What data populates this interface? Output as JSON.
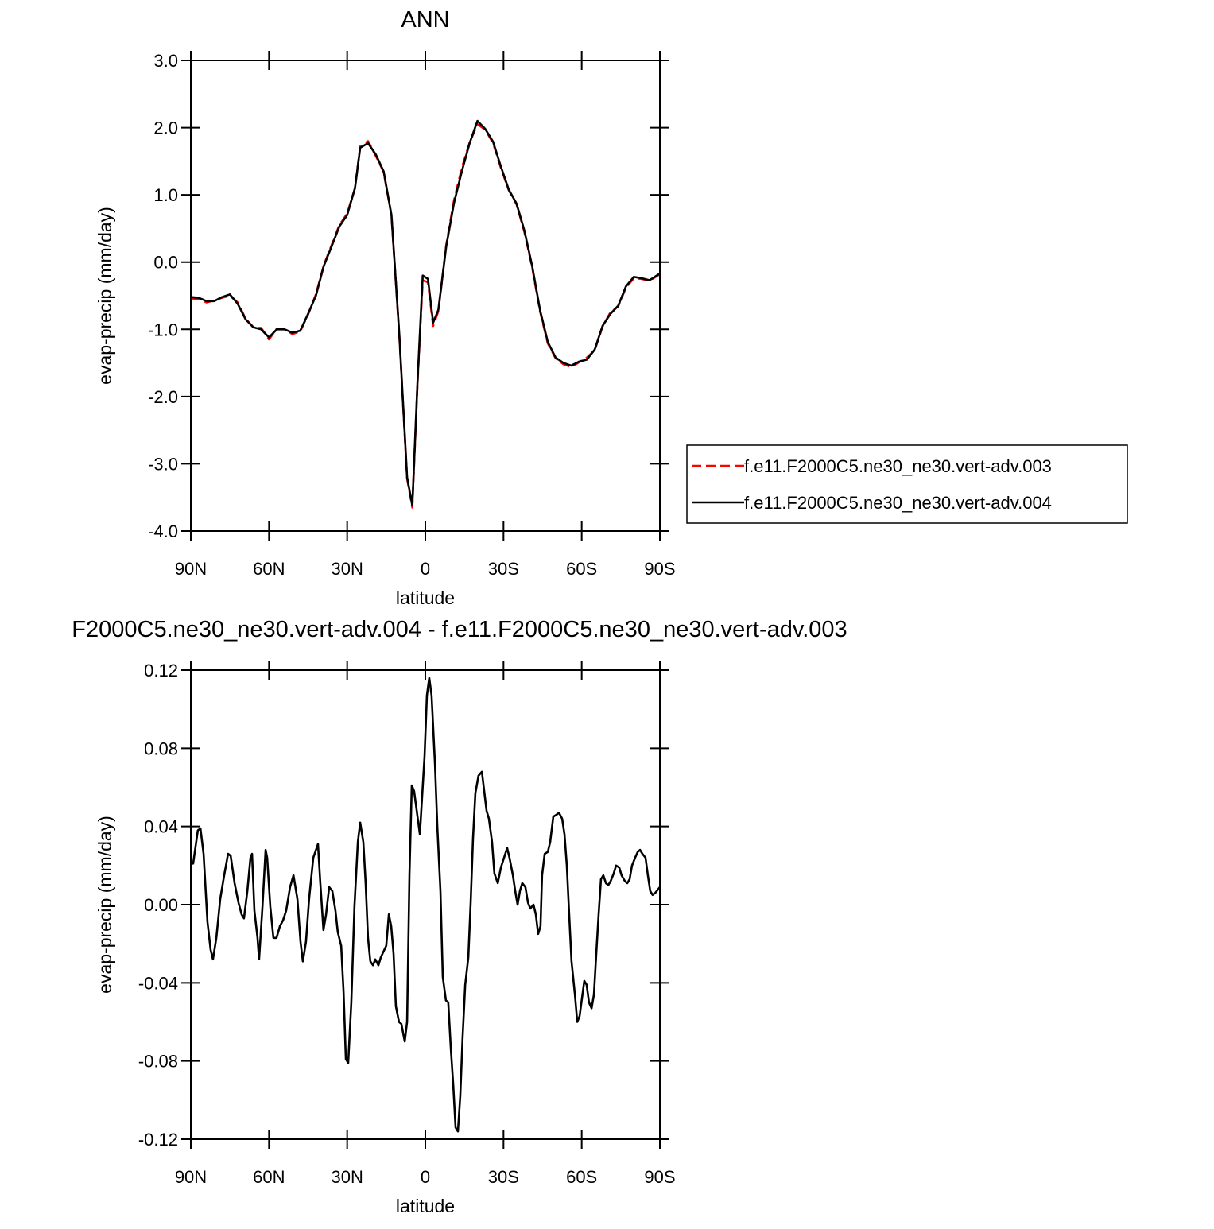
{
  "chart_data": [
    {
      "type": "line",
      "title": "ANN",
      "x_label": "latitude",
      "y_label": "evap-precip (mm/day)",
      "legend": "right",
      "x": [
        90,
        87,
        84,
        81,
        78,
        75,
        72,
        69,
        66,
        63,
        60,
        57,
        54,
        51,
        48,
        45,
        42,
        39,
        36,
        33,
        30,
        27,
        25,
        22,
        19,
        16,
        13,
        10,
        7,
        5,
        3,
        1,
        -1,
        -3,
        -5,
        -8,
        -11,
        -14,
        -17,
        -20,
        -23,
        -26,
        -29,
        -32,
        -35,
        -38,
        -41,
        -44,
        -47,
        -50,
        -53,
        -56,
        -59,
        -62,
        -65,
        -68,
        -71,
        -74,
        -77,
        -80,
        -83,
        -86,
        -90
      ],
      "series": [
        {
          "name": "f.e11.F2000C5.ne30_ne30.vert-adv.003",
          "color": "#ff0000",
          "dashed": true,
          "values": [
            -0.54,
            -0.55,
            -0.6,
            -0.57,
            -0.53,
            -0.5,
            -0.6,
            -0.84,
            -0.97,
            -0.98,
            -1.15,
            -0.99,
            -1.0,
            -1.07,
            -1.03,
            -0.78,
            -0.48,
            -0.05,
            0.25,
            0.55,
            0.72,
            1.1,
            1.72,
            1.8,
            1.58,
            1.34,
            0.69,
            -1.08,
            -3.22,
            -3.65,
            -1.8,
            -0.27,
            -0.3,
            -0.95,
            -0.73,
            0.25,
            0.92,
            1.4,
            1.78,
            2.05,
            1.97,
            1.77,
            1.4,
            1.07,
            0.86,
            0.45,
            -0.08,
            -0.73,
            -1.21,
            -1.43,
            -1.52,
            -1.56,
            -1.49,
            -1.42,
            -1.31,
            -0.96,
            -0.75,
            -0.66,
            -0.38,
            -0.24,
            -0.25,
            -0.28,
            -0.18
          ]
        },
        {
          "name": "f.e11.F2000C5.ne30_ne30.vert-adv.004",
          "color": "#000000",
          "dashed": false,
          "values": [
            -0.52,
            -0.53,
            -0.58,
            -0.58,
            -0.52,
            -0.48,
            -0.62,
            -0.85,
            -0.97,
            -1.0,
            -1.12,
            -1.0,
            -1.0,
            -1.05,
            -1.02,
            -0.77,
            -0.5,
            -0.06,
            0.23,
            0.53,
            0.7,
            1.1,
            1.7,
            1.77,
            1.6,
            1.35,
            0.7,
            -1.07,
            -3.2,
            -3.62,
            -1.78,
            -0.2,
            -0.25,
            -0.9,
            -0.71,
            0.23,
            0.88,
            1.35,
            1.77,
            2.1,
            1.98,
            1.79,
            1.42,
            1.08,
            0.87,
            0.47,
            -0.06,
            -0.71,
            -1.19,
            -1.42,
            -1.5,
            -1.54,
            -1.48,
            -1.45,
            -1.3,
            -0.95,
            -0.77,
            -0.65,
            -0.36,
            -0.22,
            -0.24,
            -0.27,
            -0.17
          ]
        }
      ],
      "xlim": [
        90,
        -90
      ],
      "xticks": [
        {
          "value": 90,
          "label": "90N"
        },
        {
          "value": 60,
          "label": "60N"
        },
        {
          "value": 30,
          "label": "30N"
        },
        0,
        {
          "value": -30,
          "label": "30S"
        },
        {
          "value": -60,
          "label": "60S"
        },
        {
          "value": -90,
          "label": "90S"
        }
      ],
      "ylim": [
        -4,
        3
      ],
      "yticks": [
        {
          "value": 3,
          "label": "3.0"
        },
        {
          "value": 2,
          "label": "2.0"
        },
        {
          "value": 1,
          "label": "1.0"
        },
        {
          "value": 0,
          "label": "0.0"
        },
        {
          "value": -1,
          "label": "-1.0"
        },
        {
          "value": -2,
          "label": "-2.0"
        },
        {
          "value": -3,
          "label": "-3.0"
        },
        {
          "value": -4,
          "label": "-4.0"
        }
      ]
    },
    {
      "type": "line",
      "title": "F2000C5.ne30_ne30.vert-adv.004 - f.e11.F2000C5.ne30_ne30.vert-adv.003",
      "x_label": "latitude",
      "y_label": "evap-precip (mm/day)",
      "x": [
        90,
        89.1,
        87.3,
        86.3,
        85.1,
        83.6,
        82.4,
        81.5,
        80.2,
        78.7,
        77.2,
        75.7,
        74.7,
        73.2,
        71.7,
        70.5,
        69.6,
        68.3,
        67.1,
        66.5,
        65.6,
        64.4,
        63.8,
        62.5,
        61.3,
        60.7,
        59.5,
        58.3,
        57.1,
        55.8,
        54.6,
        53.4,
        51.9,
        50.6,
        49.1,
        47.9,
        47.0,
        45.8,
        44.6,
        43.0,
        41.2,
        40.3,
        39.1,
        38.1,
        36.9,
        35.7,
        34.5,
        33.6,
        32.3,
        31.4,
        30.5,
        29.6,
        28.4,
        27.2,
        25.9,
        25.0,
        23.8,
        22.9,
        22.0,
        21.1,
        20.1,
        19.2,
        18.0,
        17.1,
        15.0,
        14.0,
        13.1,
        12.2,
        11.3,
        10.1,
        9.2,
        7.9,
        7.0,
        6.1,
        5.2,
        4.3,
        3.1,
        2.1,
        1.2,
        0.3,
        -0.6,
        -1.5,
        -2.4,
        -3.7,
        -4.6,
        -5.8,
        -6.7,
        -7.9,
        -8.8,
        -9.8,
        -10.7,
        -11.6,
        -12.5,
        -13.4,
        -14.3,
        -15.3,
        -16.5,
        -17.4,
        -18.3,
        -19.2,
        -20.4,
        -21.7,
        -22.6,
        -23.5,
        -24.4,
        -25.6,
        -26.5,
        -27.8,
        -29.0,
        -30.2,
        -31.4,
        -32.3,
        -33.6,
        -34.5,
        -35.4,
        -36.3,
        -37.2,
        -38.4,
        -39.4,
        -40.3,
        -41.5,
        -42.4,
        -43.3,
        -44.2,
        -44.8,
        -45.8,
        -47.0,
        -47.9,
        -49.1,
        -50.3,
        -51.3,
        -52.5,
        -53.4,
        -54.3,
        -55.2,
        -56.1,
        -57.4,
        -58.3,
        -59.2,
        -60.1,
        -61.0,
        -61.9,
        -62.8,
        -63.8,
        -64.7,
        -65.6,
        -66.5,
        -67.4,
        -68.3,
        -69.3,
        -70.2,
        -71.1,
        -72.3,
        -73.2,
        -74.4,
        -75.3,
        -76.6,
        -77.5,
        -78.4,
        -79.3,
        -80.5,
        -81.5,
        -82.4,
        -83.3,
        -84.5,
        -85.4,
        -86.3,
        -87.2,
        -88.2,
        -90
      ],
      "series": [
        {
          "color": "#000000",
          "dashed": false,
          "values": [
            0.021,
            0.021,
            0.038,
            0.039,
            0.026,
            -0.009,
            -0.023,
            -0.028,
            -0.017,
            0.003,
            0.015,
            0.026,
            0.025,
            0.011,
            0.001,
            -0.005,
            -0.007,
            0.007,
            0.024,
            0.026,
            -0.003,
            -0.017,
            -0.028,
            -0.001,
            0.028,
            0.024,
            -0.001,
            -0.017,
            -0.017,
            -0.011,
            -0.008,
            -0.003,
            0.009,
            0.015,
            0.003,
            -0.019,
            -0.029,
            -0.019,
            0.003,
            0.024,
            0.031,
            0.011,
            -0.013,
            -0.005,
            0.009,
            0.007,
            -0.003,
            -0.014,
            -0.021,
            -0.044,
            -0.079,
            -0.081,
            -0.05,
            -0.001,
            0.032,
            0.042,
            0.032,
            0.011,
            -0.017,
            -0.029,
            -0.031,
            -0.028,
            -0.031,
            -0.027,
            -0.021,
            -0.005,
            -0.011,
            -0.025,
            -0.052,
            -0.06,
            -0.061,
            -0.07,
            -0.06,
            0.015,
            0.061,
            0.058,
            0.046,
            0.036,
            0.056,
            0.076,
            0.107,
            0.116,
            0.107,
            0.072,
            0.04,
            0.007,
            -0.037,
            -0.049,
            -0.05,
            -0.074,
            -0.092,
            -0.114,
            -0.116,
            -0.098,
            -0.068,
            -0.041,
            -0.027,
            0.001,
            0.034,
            0.057,
            0.066,
            0.068,
            0.058,
            0.048,
            0.044,
            0.032,
            0.016,
            0.011,
            0.019,
            0.024,
            0.029,
            0.024,
            0.015,
            0.007,
            0.0,
            0.007,
            0.011,
            0.009,
            0.001,
            -0.002,
            0.0,
            -0.005,
            -0.015,
            -0.011,
            0.015,
            0.026,
            0.027,
            0.032,
            0.045,
            0.046,
            0.047,
            0.044,
            0.036,
            0.02,
            -0.005,
            -0.029,
            -0.046,
            -0.06,
            -0.057,
            -0.048,
            -0.039,
            -0.041,
            -0.05,
            -0.053,
            -0.046,
            -0.025,
            -0.005,
            0.013,
            0.015,
            0.011,
            0.01,
            0.012,
            0.016,
            0.02,
            0.019,
            0.015,
            0.012,
            0.011,
            0.013,
            0.02,
            0.024,
            0.027,
            0.028,
            0.026,
            0.024,
            0.015,
            0.007,
            0.005,
            0.006,
            0.009
          ]
        }
      ],
      "xlim": [
        90,
        -90
      ],
      "xticks": [
        {
          "value": 90,
          "label": "90N"
        },
        {
          "value": 60,
          "label": "60N"
        },
        {
          "value": 30,
          "label": "30N"
        },
        0,
        {
          "value": -30,
          "label": "30S"
        },
        {
          "value": -60,
          "label": "60S"
        },
        {
          "value": -90,
          "label": "90S"
        }
      ],
      "ylim": [
        -0.12,
        0.12
      ],
      "yticks": [
        0.12,
        0.08,
        0.04,
        {
          "value": 0,
          "label": "0.00"
        },
        -0.04,
        -0.08,
        -0.12
      ]
    }
  ]
}
